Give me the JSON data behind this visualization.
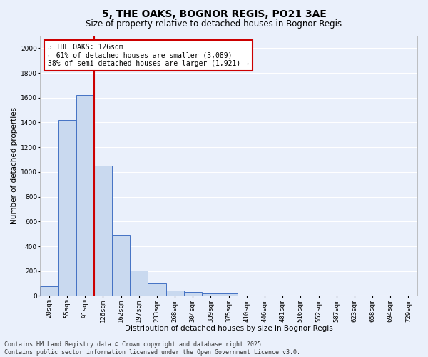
{
  "title": "5, THE OAKS, BOGNOR REGIS, PO21 3AE",
  "subtitle": "Size of property relative to detached houses in Bognor Regis",
  "xlabel": "Distribution of detached houses by size in Bognor Regis",
  "ylabel": "Number of detached properties",
  "categories": [
    "20sqm",
    "55sqm",
    "91sqm",
    "126sqm",
    "162sqm",
    "197sqm",
    "233sqm",
    "268sqm",
    "304sqm",
    "339sqm",
    "375sqm",
    "410sqm",
    "446sqm",
    "481sqm",
    "516sqm",
    "552sqm",
    "587sqm",
    "623sqm",
    "658sqm",
    "694sqm",
    "729sqm"
  ],
  "values": [
    80,
    1420,
    1620,
    1050,
    490,
    205,
    100,
    40,
    30,
    20,
    20,
    0,
    0,
    0,
    0,
    0,
    0,
    0,
    0,
    0,
    0
  ],
  "bar_color": "#c9d9ef",
  "bar_edge_color": "#4472c4",
  "background_color": "#eaf0fb",
  "grid_color": "#ffffff",
  "red_line_x": 2.5,
  "annotation_title": "5 THE OAKS: 126sqm",
  "annotation_line1": "← 61% of detached houses are smaller (3,089)",
  "annotation_line2": "38% of semi-detached houses are larger (1,921) →",
  "annotation_color": "#cc0000",
  "ylim": [
    0,
    2100
  ],
  "yticks": [
    0,
    200,
    400,
    600,
    800,
    1000,
    1200,
    1400,
    1600,
    1800,
    2000
  ],
  "footer_line1": "Contains HM Land Registry data © Crown copyright and database right 2025.",
  "footer_line2": "Contains public sector information licensed under the Open Government Licence v3.0.",
  "title_fontsize": 10,
  "subtitle_fontsize": 8.5,
  "axis_label_fontsize": 7.5,
  "tick_fontsize": 6.5,
  "annotation_fontsize": 7,
  "footer_fontsize": 6
}
